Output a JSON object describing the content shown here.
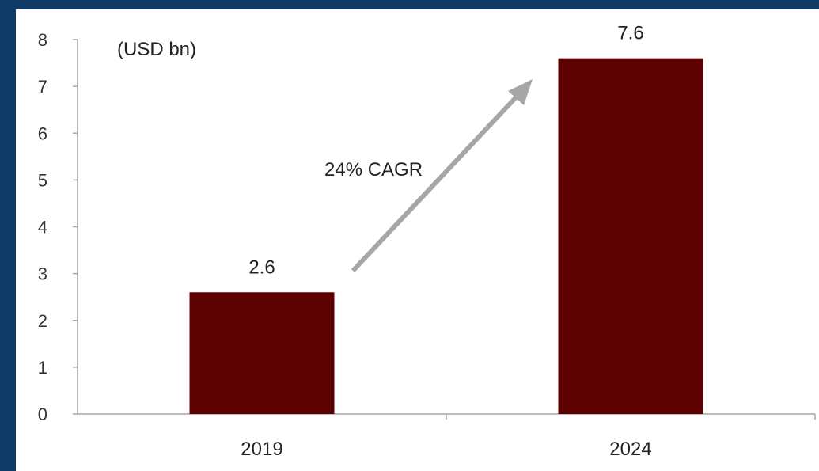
{
  "chart_data": {
    "type": "bar",
    "categories": [
      "2019",
      "2024"
    ],
    "values": [
      2.6,
      7.6
    ],
    "value_labels": [
      "2.6",
      "7.6"
    ],
    "unit": "(USD bn)",
    "annotation": "24% CAGR",
    "title": "",
    "xlabel": "",
    "ylabel": "",
    "ylim": [
      0,
      8
    ],
    "yticks": [
      "0",
      "1",
      "2",
      "3",
      "4",
      "5",
      "6",
      "7",
      "8"
    ],
    "grid": false,
    "legend": "none",
    "bar_color": "#5c0000",
    "arrow_color": "#a6a6a6"
  }
}
